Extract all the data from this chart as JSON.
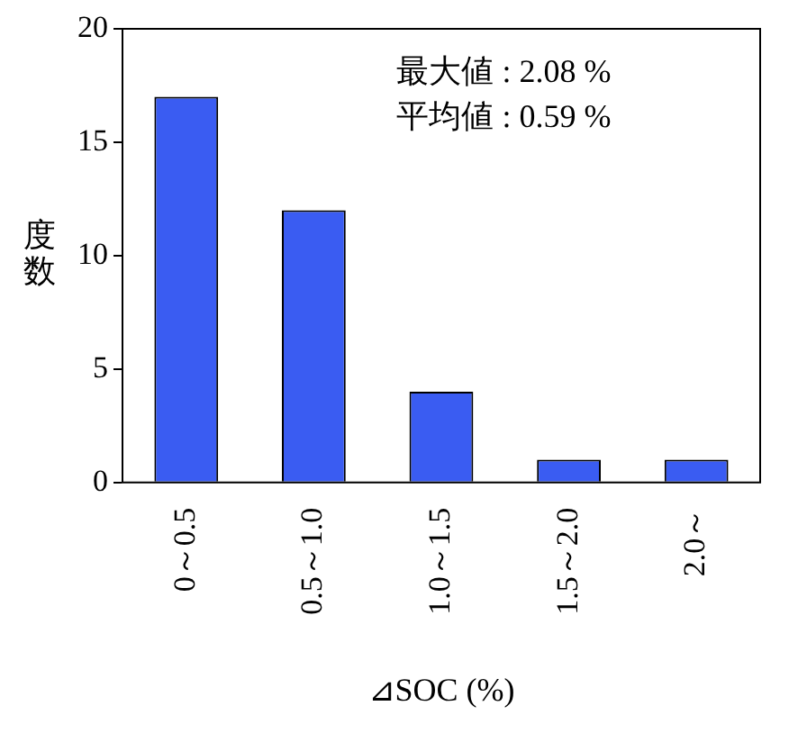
{
  "chart_data": {
    "type": "bar",
    "xlabel": "⊿SOC (%)",
    "ylabel": "度数",
    "categories": [
      "0～0.5",
      "0.5～1.0",
      "1.0～1.5",
      "1.5～2.0",
      "2.0～"
    ],
    "values": [
      17,
      12,
      4,
      1,
      1
    ],
    "color": "#3a5cf2",
    "ylim": [
      0,
      20
    ],
    "yticks": [
      0,
      5,
      10,
      15,
      20
    ],
    "annotations": [
      "最大値 : 2.08 %",
      "平均値 : 0.59 %"
    ]
  }
}
